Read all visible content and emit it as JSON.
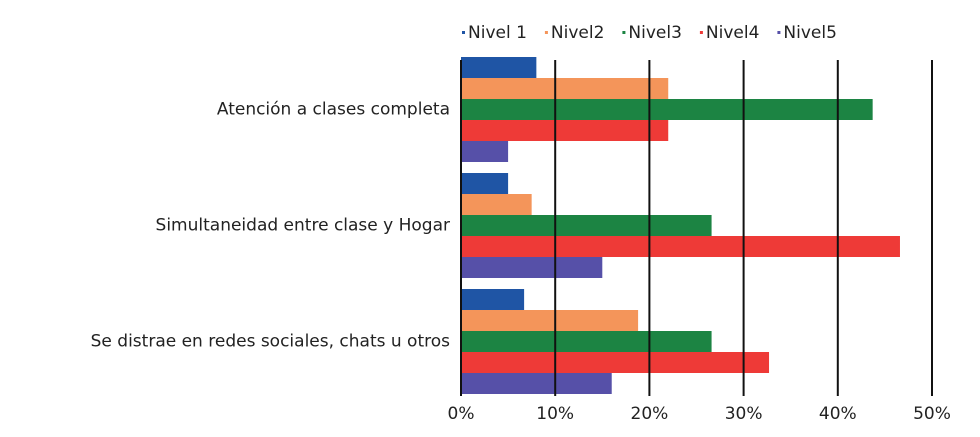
{
  "chart_data": {
    "type": "bar",
    "orientation": "horizontal",
    "categories": [
      "Atención a clases completa",
      "Simultaneidad entre clase y Hogar",
      "Se distrae en redes sociales, chats u otros"
    ],
    "series": [
      {
        "name": "Nivel 1",
        "color": "#1f55a5",
        "values": [
          8,
          5,
          6.7
        ]
      },
      {
        "name": "Nivel2",
        "color": "#f4955a",
        "values": [
          22,
          7.5,
          18.8
        ]
      },
      {
        "name": "Nivel3",
        "color": "#1c8443",
        "values": [
          43.7,
          26.6,
          26.6
        ]
      },
      {
        "name": "Nivel4",
        "color": "#ee3a37",
        "values": [
          22,
          46.6,
          32.7
        ]
      },
      {
        "name": "Nivel5",
        "color": "#5650a8",
        "values": [
          5,
          15,
          16
        ]
      }
    ],
    "xlim": [
      0,
      50
    ],
    "xticks": [
      {
        "value": 0,
        "label": "0%"
      },
      {
        "value": 10,
        "label": "10%"
      },
      {
        "value": 20,
        "label": "20%"
      },
      {
        "value": 30,
        "label": "30%"
      },
      {
        "value": 40,
        "label": "40%"
      },
      {
        "value": 50,
        "label": "50%"
      }
    ],
    "grid": true,
    "legend": "top"
  }
}
